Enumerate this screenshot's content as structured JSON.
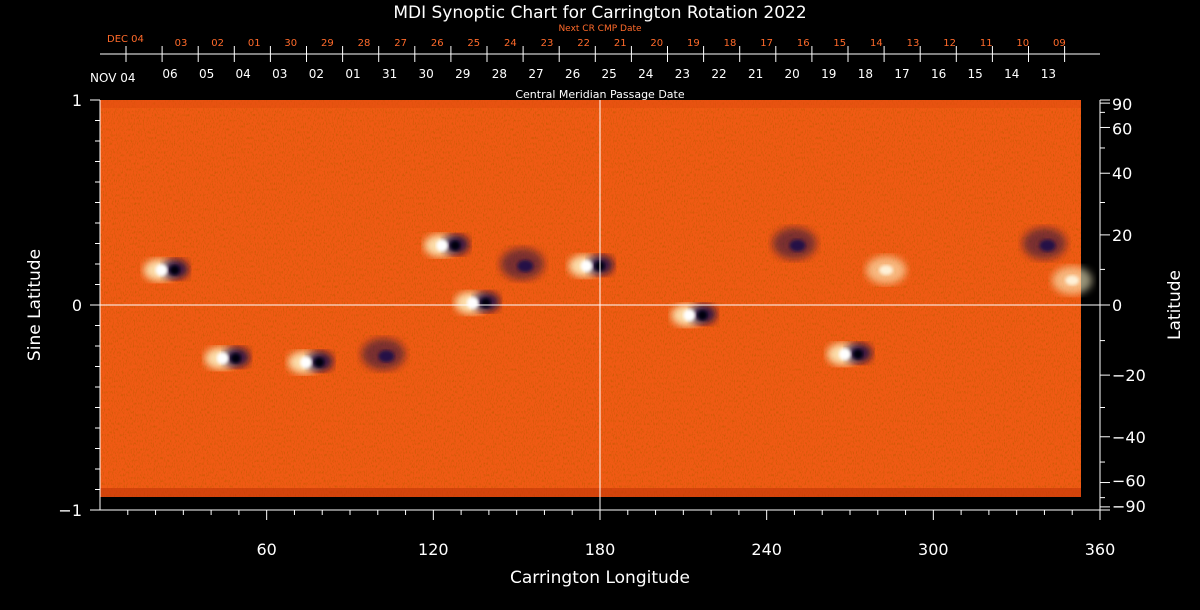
{
  "chart_data": {
    "type": "heatmap",
    "title": "MDI Synoptic Chart for Carrington Rotation 2022",
    "xlabel": "Carrington Longitude",
    "ylabel": "Sine Latitude",
    "ylabel_right": "Latitude",
    "top_title": "Next CR CMP Date",
    "sub_title": "Central Meridian Passage Date",
    "xlim": [
      0,
      360
    ],
    "ylim": [
      -1,
      1
    ],
    "x_ticks": [
      60,
      120,
      180,
      240,
      300,
      360
    ],
    "y_ticks_left": [
      {
        "value": 1,
        "label": "1"
      },
      {
        "value": 0,
        "label": "0"
      },
      {
        "value": -1,
        "label": "−1"
      }
    ],
    "lat_ticks_right": [
      {
        "deg": 90,
        "label": "90"
      },
      {
        "deg": 60,
        "label": "60"
      },
      {
        "deg": 40,
        "label": "40"
      },
      {
        "deg": 20,
        "label": "20"
      },
      {
        "deg": 0,
        "label": "0"
      },
      {
        "deg": -20,
        "label": "−20"
      },
      {
        "deg": -40,
        "label": "−40"
      },
      {
        "deg": -60,
        "label": "−60"
      },
      {
        "deg": -90,
        "label": "−90"
      }
    ],
    "cmp_dates_current": {
      "month_label": "NOV 04",
      "days": [
        "06",
        "05",
        "04",
        "03",
        "02",
        "01",
        "31",
        "30",
        "29",
        "28",
        "27",
        "26",
        "25",
        "24",
        "23",
        "22",
        "21",
        "20",
        "19",
        "18",
        "17",
        "16",
        "15",
        "14",
        "13"
      ]
    },
    "cmp_dates_next": {
      "month_label": "DEC 04",
      "days": [
        "03",
        "02",
        "01",
        "30",
        "29",
        "28",
        "27",
        "26",
        "25",
        "24",
        "23",
        "22",
        "21",
        "20",
        "19",
        "18",
        "17",
        "16",
        "15",
        "14",
        "13",
        "12",
        "11",
        "10",
        "09"
      ]
    },
    "active_regions": [
      {
        "lon": 24,
        "lat": 0.17,
        "polarity": "bipolar"
      },
      {
        "lon": 46,
        "lat": -0.26,
        "polarity": "bipolar"
      },
      {
        "lon": 76,
        "lat": -0.28,
        "polarity": "bipolar"
      },
      {
        "lon": 102,
        "lat": -0.24,
        "polarity": "negative"
      },
      {
        "lon": 125,
        "lat": 0.29,
        "polarity": "bipolar"
      },
      {
        "lon": 136,
        "lat": 0.01,
        "polarity": "bipolar"
      },
      {
        "lon": 152,
        "lat": 0.2,
        "polarity": "negative"
      },
      {
        "lon": 177,
        "lat": 0.19,
        "polarity": "bipolar"
      },
      {
        "lon": 214,
        "lat": -0.05,
        "polarity": "bipolar"
      },
      {
        "lon": 250,
        "lat": 0.3,
        "polarity": "negative"
      },
      {
        "lon": 270,
        "lat": -0.24,
        "polarity": "bipolar"
      },
      {
        "lon": 283,
        "lat": 0.17,
        "polarity": "positive"
      },
      {
        "lon": 340,
        "lat": 0.3,
        "polarity": "negative"
      },
      {
        "lon": 350,
        "lat": 0.12,
        "polarity": "positive"
      }
    ],
    "colors": {
      "background": "#000000",
      "field_base": "#f05a14",
      "positive": "#fff6c8",
      "negative": "#1a0d4a"
    }
  }
}
